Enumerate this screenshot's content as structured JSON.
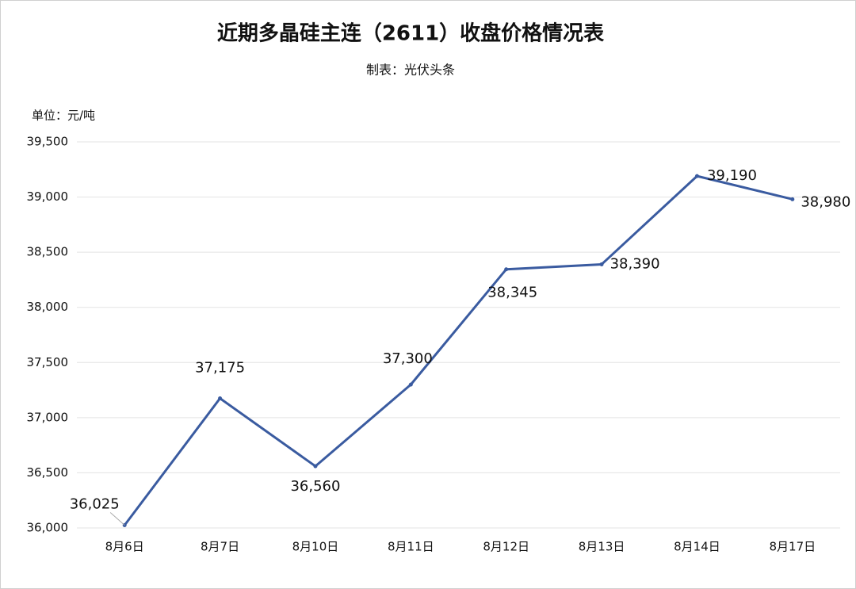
{
  "chart_data": {
    "type": "line",
    "title": "近期多晶硅主连（2611）收盘价格情况表",
    "subtitle": "制表：光伏头条",
    "unit_label": "单位：元/吨",
    "categories": [
      "8月6日",
      "8月7日",
      "8月10日",
      "8月11日",
      "8月12日",
      "8月13日",
      "8月14日",
      "8月17日"
    ],
    "values": [
      36025,
      37175,
      36560,
      37300,
      38345,
      38390,
      39190,
      38980
    ],
    "value_labels": [
      "36,025",
      "37,175",
      "36,560",
      "37,300",
      "38,345",
      "38,390",
      "39,190",
      "38,980"
    ],
    "color": "#3a5ba0",
    "ylim": [
      36000,
      39500
    ],
    "yticks": [
      {
        "value": 36000,
        "label": "36,000"
      },
      {
        "value": 36500,
        "label": "36,500"
      },
      {
        "value": 37000,
        "label": "37,000"
      },
      {
        "value": 37500,
        "label": "37,500"
      },
      {
        "value": 38000,
        "label": "38,000"
      },
      {
        "value": 38500,
        "label": "38,500"
      },
      {
        "value": 39000,
        "label": "39,000"
      },
      {
        "value": 39500,
        "label": "39,500"
      }
    ],
    "grid": true
  }
}
